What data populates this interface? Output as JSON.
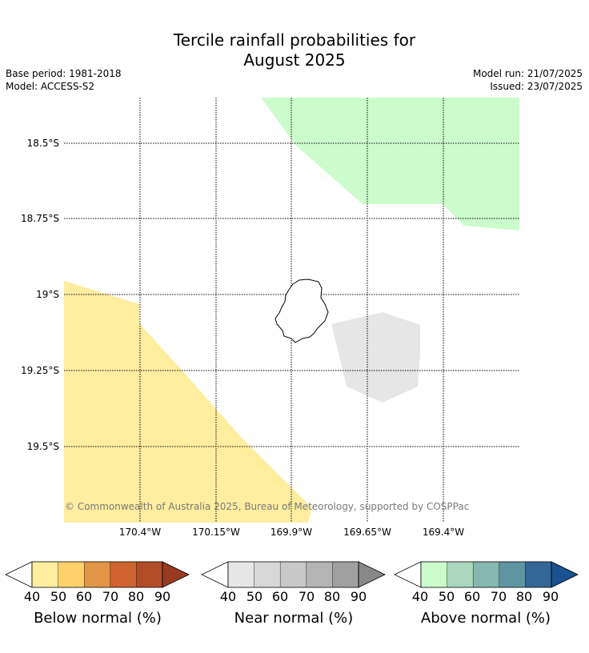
{
  "header": {
    "title_line1": "Tercile rainfall probabilities for",
    "title_line2": "August 2025",
    "base_period": "Base period: 1981-2018",
    "model": "Model: ACCESS-S2",
    "model_run": "Model run: 21/07/2025",
    "issued": "Issued: 23/07/2025"
  },
  "map": {
    "lat_labels": [
      "18.5°S",
      "18.75°S",
      "19°S",
      "19.25°S",
      "19.5°S"
    ],
    "lon_labels": [
      "170.4°W",
      "170.15°W",
      "169.9°W",
      "169.65°W",
      "169.4°W"
    ],
    "copyright": "© Commonwealth of Australia 2025, Bureau of Meteorology, supported by COSPPac",
    "region_colors": {
      "below_normal": "#ffeda0",
      "near_normal": "#e6e6e6",
      "above_normal": "#ccfbcc"
    }
  },
  "legends": [
    {
      "label": "Below normal (%)",
      "ticks": [
        "40",
        "50",
        "60",
        "70",
        "80",
        "90"
      ],
      "colors": [
        "#ffffff",
        "#ffeda0",
        "#fed16b",
        "#e29546",
        "#cf6431",
        "#b24c27",
        "#9a3a22"
      ]
    },
    {
      "label": "Near normal (%)",
      "ticks": [
        "40",
        "50",
        "60",
        "70",
        "80",
        "90"
      ],
      "colors": [
        "#ffffff",
        "#e6e6e6",
        "#d8d8d8",
        "#c8c8c8",
        "#b4b4b4",
        "#a0a0a0",
        "#888888"
      ]
    },
    {
      "label": "Above normal (%)",
      "ticks": [
        "40",
        "50",
        "60",
        "70",
        "80",
        "90"
      ],
      "colors": [
        "#ffffff",
        "#ccfbcc",
        "#a9d6bd",
        "#85b8b0",
        "#5f94a2",
        "#336699",
        "#1a5190"
      ]
    }
  ]
}
